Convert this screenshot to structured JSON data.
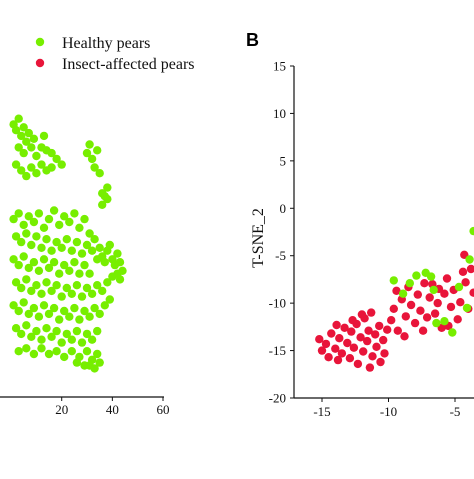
{
  "colors": {
    "healthy": "#77ee00",
    "insect": "#e8153a",
    "axis": "#111111"
  },
  "legend": {
    "placement": "top-left",
    "items": [
      {
        "label": "Healthy pears",
        "color": "#77ee00"
      },
      {
        "label": "Insect-affected pears",
        "color": "#e8153a"
      }
    ]
  },
  "chart_data": [
    {
      "type": "scatter",
      "title": "",
      "xlabel": "",
      "ylabel": "",
      "xlim": [
        -2,
        60
      ],
      "ylim": [
        0,
        1
      ],
      "x_ticks": [
        "20",
        "40",
        "60"
      ],
      "x_tick_values": [
        20,
        40,
        60
      ],
      "grid": false,
      "series": [
        {
          "name": "Healthy pears",
          "color": "#77ee00",
          "points": [
            [
              1,
              0.88
            ],
            [
              2,
              0.86
            ],
            [
              3,
              0.9
            ],
            [
              4,
              0.84
            ],
            [
              5,
              0.87
            ],
            [
              6,
              0.82
            ],
            [
              7,
              0.85
            ],
            [
              3,
              0.8
            ],
            [
              5,
              0.78
            ],
            [
              8,
              0.8
            ],
            [
              9,
              0.83
            ],
            [
              10,
              0.77
            ],
            [
              12,
              0.8
            ],
            [
              14,
              0.79
            ],
            [
              13,
              0.84
            ],
            [
              2,
              0.74
            ],
            [
              4,
              0.72
            ],
            [
              6,
              0.7
            ],
            [
              8,
              0.73
            ],
            [
              10,
              0.71
            ],
            [
              12,
              0.74
            ],
            [
              14,
              0.72
            ],
            [
              16,
              0.78
            ],
            [
              18,
              0.76
            ],
            [
              16,
              0.73
            ],
            [
              20,
              0.74
            ],
            [
              30,
              0.78
            ],
            [
              32,
              0.76
            ],
            [
              33,
              0.73
            ],
            [
              35,
              0.71
            ],
            [
              34,
              0.79
            ],
            [
              31,
              0.81
            ],
            [
              36,
              0.64
            ],
            [
              38,
              0.62
            ],
            [
              36,
              0.6
            ],
            [
              38,
              0.66
            ],
            [
              37,
              0.63
            ],
            [
              1,
              0.55
            ],
            [
              3,
              0.57
            ],
            [
              5,
              0.53
            ],
            [
              7,
              0.56
            ],
            [
              9,
              0.54
            ],
            [
              11,
              0.57
            ],
            [
              13,
              0.52
            ],
            [
              15,
              0.55
            ],
            [
              17,
              0.58
            ],
            [
              19,
              0.53
            ],
            [
              21,
              0.56
            ],
            [
              23,
              0.54
            ],
            [
              25,
              0.57
            ],
            [
              27,
              0.52
            ],
            [
              29,
              0.55
            ],
            [
              31,
              0.5
            ],
            [
              2,
              0.49
            ],
            [
              4,
              0.47
            ],
            [
              6,
              0.5
            ],
            [
              8,
              0.46
            ],
            [
              10,
              0.49
            ],
            [
              12,
              0.45
            ],
            [
              14,
              0.48
            ],
            [
              16,
              0.44
            ],
            [
              18,
              0.47
            ],
            [
              20,
              0.45
            ],
            [
              22,
              0.48
            ],
            [
              24,
              0.44
            ],
            [
              26,
              0.47
            ],
            [
              28,
              0.43
            ],
            [
              30,
              0.46
            ],
            [
              32,
              0.44
            ],
            [
              33,
              0.48
            ],
            [
              35,
              0.45
            ],
            [
              36,
              0.42
            ],
            [
              38,
              0.44
            ],
            [
              40,
              0.41
            ],
            [
              42,
              0.43
            ],
            [
              41,
              0.39
            ],
            [
              43,
              0.4
            ],
            [
              39,
              0.46
            ],
            [
              37,
              0.4
            ],
            [
              34,
              0.41
            ],
            [
              1,
              0.41
            ],
            [
              3,
              0.39
            ],
            [
              5,
              0.42
            ],
            [
              7,
              0.38
            ],
            [
              9,
              0.4
            ],
            [
              11,
              0.37
            ],
            [
              13,
              0.41
            ],
            [
              15,
              0.38
            ],
            [
              17,
              0.4
            ],
            [
              19,
              0.36
            ],
            [
              21,
              0.39
            ],
            [
              23,
              0.37
            ],
            [
              25,
              0.4
            ],
            [
              27,
              0.36
            ],
            [
              29,
              0.39
            ],
            [
              31,
              0.36
            ],
            [
              2,
              0.33
            ],
            [
              4,
              0.31
            ],
            [
              6,
              0.34
            ],
            [
              8,
              0.3
            ],
            [
              10,
              0.32
            ],
            [
              12,
              0.29
            ],
            [
              14,
              0.33
            ],
            [
              16,
              0.3
            ],
            [
              18,
              0.32
            ],
            [
              20,
              0.28
            ],
            [
              22,
              0.31
            ],
            [
              24,
              0.29
            ],
            [
              26,
              0.32
            ],
            [
              28,
              0.28
            ],
            [
              30,
              0.31
            ],
            [
              32,
              0.29
            ],
            [
              34,
              0.32
            ],
            [
              36,
              0.3
            ],
            [
              38,
              0.33
            ],
            [
              40,
              0.35
            ],
            [
              42,
              0.36
            ],
            [
              44,
              0.37
            ],
            [
              43,
              0.34
            ],
            [
              1,
              0.25
            ],
            [
              3,
              0.23
            ],
            [
              5,
              0.26
            ],
            [
              7,
              0.22
            ],
            [
              9,
              0.24
            ],
            [
              11,
              0.21
            ],
            [
              13,
              0.25
            ],
            [
              15,
              0.22
            ],
            [
              17,
              0.24
            ],
            [
              19,
              0.2
            ],
            [
              21,
              0.23
            ],
            [
              23,
              0.21
            ],
            [
              25,
              0.24
            ],
            [
              27,
              0.2
            ],
            [
              29,
              0.23
            ],
            [
              31,
              0.21
            ],
            [
              33,
              0.24
            ],
            [
              35,
              0.22
            ],
            [
              37,
              0.25
            ],
            [
              39,
              0.27
            ],
            [
              2,
              0.17
            ],
            [
              4,
              0.15
            ],
            [
              6,
              0.18
            ],
            [
              8,
              0.14
            ],
            [
              10,
              0.16
            ],
            [
              12,
              0.13
            ],
            [
              14,
              0.17
            ],
            [
              16,
              0.14
            ],
            [
              18,
              0.16
            ],
            [
              20,
              0.12
            ],
            [
              22,
              0.15
            ],
            [
              24,
              0.13
            ],
            [
              26,
              0.16
            ],
            [
              28,
              0.12
            ],
            [
              30,
              0.15
            ],
            [
              32,
              0.13
            ],
            [
              34,
              0.16
            ],
            [
              3,
              0.09
            ],
            [
              6,
              0.1
            ],
            [
              9,
              0.08
            ],
            [
              12,
              0.1
            ],
            [
              15,
              0.08
            ],
            [
              18,
              0.09
            ],
            [
              21,
              0.07
            ],
            [
              24,
              0.09
            ],
            [
              27,
              0.07
            ],
            [
              30,
              0.09
            ],
            [
              32,
              0.06
            ],
            [
              34,
              0.08
            ],
            [
              31,
              0.04
            ],
            [
              33,
              0.03
            ],
            [
              35,
              0.05
            ],
            [
              29,
              0.04
            ],
            [
              26,
              0.05
            ]
          ]
        }
      ]
    },
    {
      "type": "scatter",
      "title": "",
      "xlabel": "",
      "ylabel": "T-SNE_2",
      "xlim": [
        -17,
        -1
      ],
      "ylim": [
        -20,
        15
      ],
      "x_ticks": [
        "-15",
        "-10",
        "-5"
      ],
      "x_tick_values": [
        -15,
        -10,
        -5
      ],
      "y_ticks": [
        "15",
        "10",
        "5",
        "0",
        "-5",
        "-10",
        "-15",
        "-20"
      ],
      "y_tick_values": [
        15,
        10,
        5,
        0,
        -5,
        -10,
        -15,
        -20
      ],
      "grid": false,
      "series": [
        {
          "name": "Insect-affected pears",
          "color": "#e8153a",
          "points": [
            [
              -15.2,
              -13.8
            ],
            [
              -15.0,
              -15.0
            ],
            [
              -14.7,
              -14.3
            ],
            [
              -14.5,
              -15.7
            ],
            [
              -14.3,
              -13.2
            ],
            [
              -14.0,
              -14.8
            ],
            [
              -13.8,
              -16.0
            ],
            [
              -13.7,
              -13.7
            ],
            [
              -13.5,
              -15.3
            ],
            [
              -13.3,
              -12.6
            ],
            [
              -13.1,
              -14.2
            ],
            [
              -12.9,
              -15.8
            ],
            [
              -12.8,
              -13.0
            ],
            [
              -12.6,
              -14.7
            ],
            [
              -12.4,
              -12.2
            ],
            [
              -12.3,
              -16.4
            ],
            [
              -12.1,
              -13.6
            ],
            [
              -11.9,
              -15.1
            ],
            [
              -11.8,
              -11.6
            ],
            [
              -11.6,
              -14.0
            ],
            [
              -11.5,
              -12.9
            ],
            [
              -11.4,
              -16.8
            ],
            [
              -11.2,
              -15.6
            ],
            [
              -11.0,
              -13.3
            ],
            [
              -10.9,
              -14.6
            ],
            [
              -10.7,
              -12.4
            ],
            [
              -10.6,
              -16.2
            ],
            [
              -10.4,
              -13.9
            ],
            [
              -10.3,
              -15.3
            ],
            [
              -10.1,
              -12.8
            ],
            [
              -12.0,
              -11.2
            ],
            [
              -12.7,
              -11.8
            ],
            [
              -13.9,
              -12.3
            ],
            [
              -11.3,
              -11.0
            ],
            [
              -9.8,
              -11.8
            ],
            [
              -9.6,
              -10.6
            ],
            [
              -9.3,
              -12.9
            ],
            [
              -9.0,
              -9.6
            ],
            [
              -8.7,
              -11.4
            ],
            [
              -8.5,
              -8.3
            ],
            [
              -8.3,
              -10.2
            ],
            [
              -8.0,
              -12.1
            ],
            [
              -7.8,
              -9.1
            ],
            [
              -7.6,
              -10.8
            ],
            [
              -7.3,
              -7.9
            ],
            [
              -7.1,
              -11.5
            ],
            [
              -6.9,
              -9.4
            ],
            [
              -6.7,
              -8.0
            ],
            [
              -6.5,
              -11.1
            ],
            [
              -6.3,
              -10.0
            ],
            [
              -6.0,
              -12.6
            ],
            [
              -5.8,
              -9.0
            ],
            [
              -5.6,
              -7.4
            ],
            [
              -5.3,
              -10.4
            ],
            [
              -5.1,
              -8.6
            ],
            [
              -4.8,
              -11.7
            ],
            [
              -4.6,
              -9.9
            ],
            [
              -4.4,
              -6.7
            ],
            [
              -4.2,
              -7.8
            ],
            [
              -4.0,
              -10.6
            ],
            [
              -3.8,
              -6.4
            ],
            [
              -3.6,
              -8.9
            ],
            [
              -3.4,
              -5.1
            ],
            [
              -3.2,
              -7.2
            ],
            [
              -3.0,
              -6.1
            ],
            [
              -9.4,
              -8.7
            ],
            [
              -8.8,
              -13.5
            ],
            [
              -7.4,
              -12.9
            ],
            [
              -6.2,
              -8.5
            ],
            [
              -5.5,
              -12.4
            ],
            [
              -4.3,
              -4.9
            ],
            [
              -3.5,
              -3.8
            ]
          ]
        },
        {
          "name": "Healthy pears",
          "color": "#77ee00",
          "points": [
            [
              -9.6,
              -7.6
            ],
            [
              -8.4,
              -7.9
            ],
            [
              -7.2,
              -6.8
            ],
            [
              -6.6,
              -8.6
            ],
            [
              -6.4,
              -12.1
            ],
            [
              -5.2,
              -13.1
            ],
            [
              -5.8,
              -11.9
            ],
            [
              -4.7,
              -8.3
            ],
            [
              -3.9,
              -5.4
            ],
            [
              -3.4,
              -4.4
            ],
            [
              -3.2,
              -3.3
            ],
            [
              -2.9,
              -2.6
            ],
            [
              -3.6,
              -2.4
            ],
            [
              -4.1,
              -10.5
            ],
            [
              -6.8,
              -7.2
            ],
            [
              -8.9,
              -9.0
            ],
            [
              -7.9,
              -7.1
            ]
          ]
        }
      ]
    }
  ]
}
